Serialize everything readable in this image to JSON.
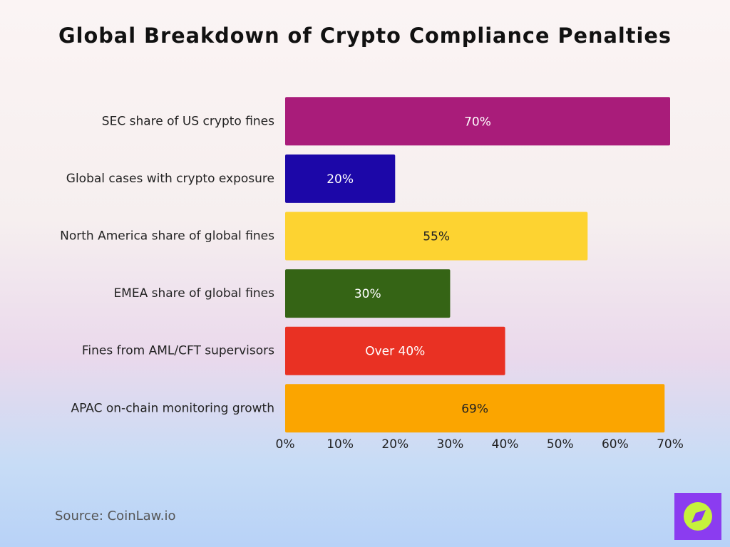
{
  "chart_data": {
    "type": "hbar",
    "title": "Global Breakdown of Crypto Compliance Penalties",
    "categories": [
      "SEC share of US crypto fines",
      "Global cases with crypto exposure",
      "North America share of global fines",
      "EMEA share of global fines",
      "Fines from AML/CFT supervisors",
      "APAC on-chain monitoring growth"
    ],
    "values": [
      70,
      20,
      55,
      30,
      40,
      69
    ],
    "value_labels": [
      "70%",
      "20%",
      "55%",
      "30%",
      "Over 40%",
      "69%"
    ],
    "colors": [
      "#a91c7a",
      "#1c07a8",
      "#fdd331",
      "#356415",
      "#e93123",
      "#fba500"
    ],
    "xlim": [
      0,
      70
    ],
    "xticks": [
      {
        "value": 0,
        "label": "0%"
      },
      {
        "value": 10,
        "label": "10%"
      },
      {
        "value": 20,
        "label": "20%"
      },
      {
        "value": 30,
        "label": "30%"
      },
      {
        "value": 40,
        "label": "40%"
      },
      {
        "value": 50,
        "label": "50%"
      },
      {
        "value": 60,
        "label": "60%"
      },
      {
        "value": 70,
        "label": "70%"
      }
    ],
    "source": "Source: CoinLaw.io"
  }
}
